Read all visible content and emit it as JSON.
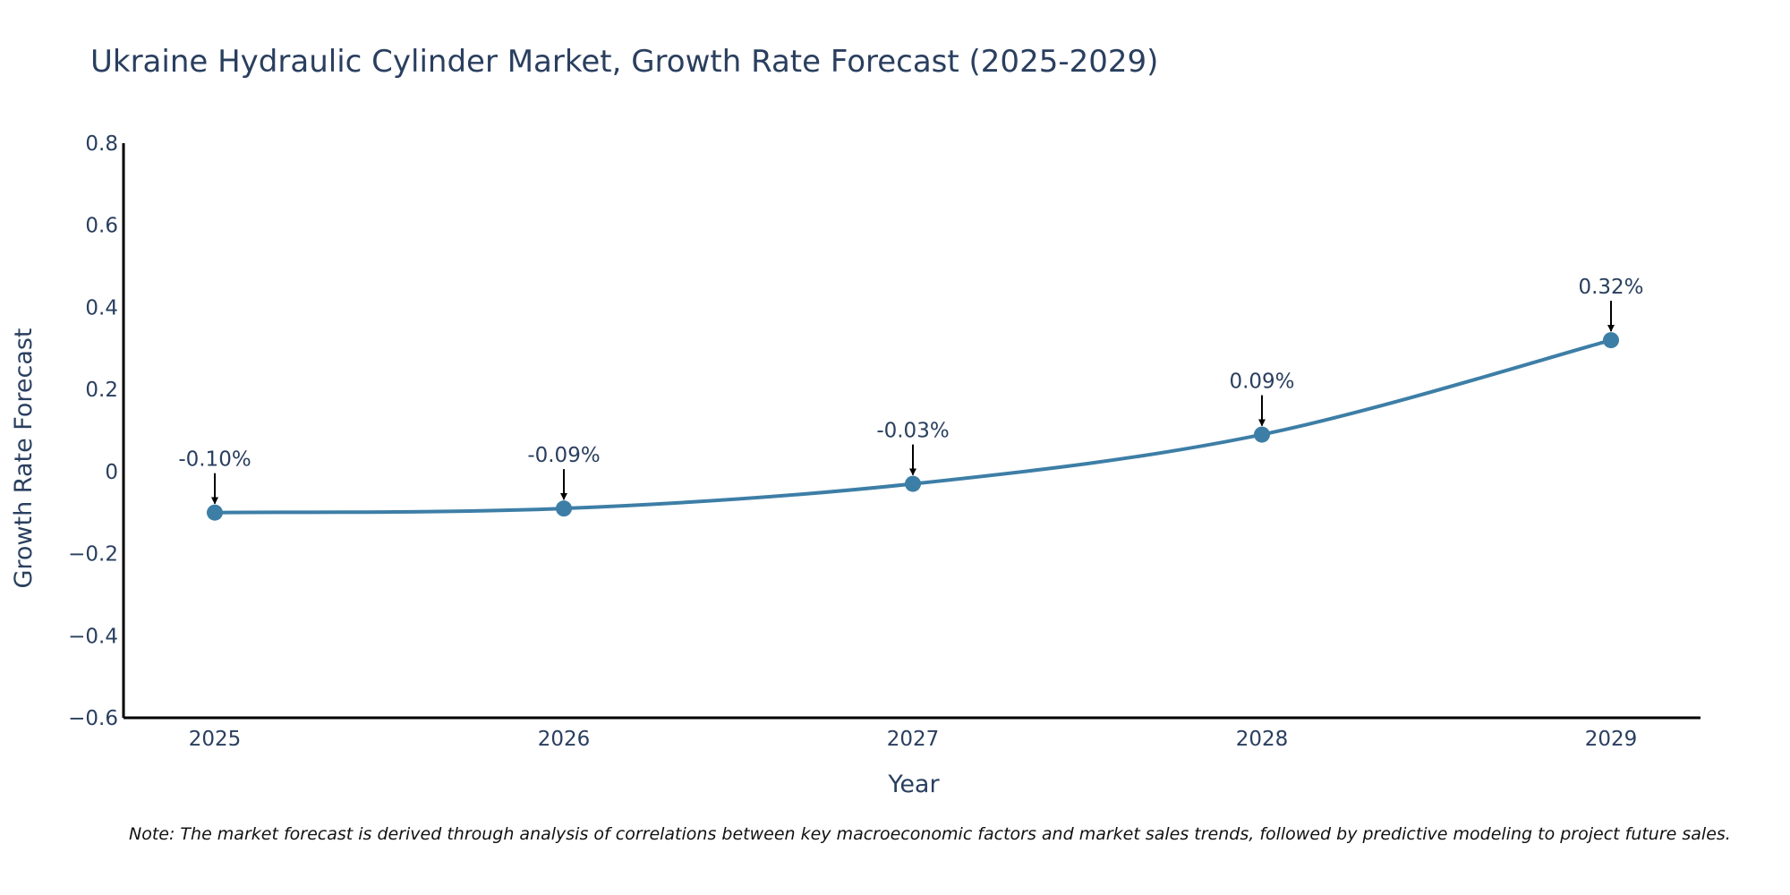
{
  "chart_data": {
    "type": "line",
    "title": "Ukraine Hydraulic Cylinder Market, Growth Rate Forecast (2025-2029)",
    "xlabel": "Year",
    "ylabel": "Growth Rate Forecast",
    "categories": [
      "2025",
      "2026",
      "2027",
      "2028",
      "2029"
    ],
    "values": [
      -0.1,
      -0.09,
      -0.03,
      0.09,
      0.32
    ],
    "data_labels": [
      "-0.10%",
      "-0.09%",
      "-0.03%",
      "0.09%",
      "0.32%"
    ],
    "ylim": [
      -0.6,
      0.8
    ],
    "yticks": [
      -0.6,
      -0.4,
      -0.2,
      0,
      0.2,
      0.4,
      0.6,
      0.8
    ],
    "ytick_labels": [
      "−0.6",
      "−0.4",
      "−0.2",
      "0",
      "0.2",
      "0.4",
      "0.6",
      "0.8"
    ],
    "grid": false,
    "line_color": "#3d7ea6",
    "marker_color": "#3d7ea6",
    "arrow_color": "#000000"
  },
  "note": "Note: The market forecast is derived through analysis of correlations between key macroeconomic factors and market sales trends, followed by predictive modeling to project future sales."
}
